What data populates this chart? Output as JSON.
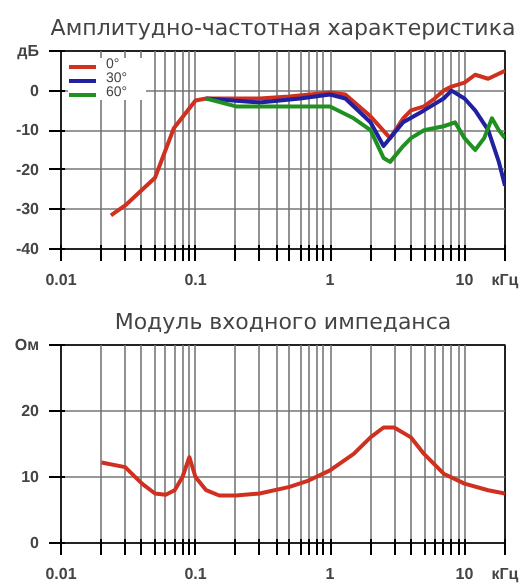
{
  "chart_data": [
    {
      "type": "line",
      "title": "Амплитудно-частотная характеристика",
      "log": "x",
      "grid": true,
      "legend": "top left",
      "xlim": [
        0.01,
        20
      ],
      "ylim": [
        -40,
        10
      ],
      "xticks": [
        0.01,
        {
          "value": 0.02,
          "label": null
        },
        {
          "value": 0.03,
          "label": null
        },
        {
          "value": 0.04,
          "label": null
        },
        {
          "value": 0.05,
          "label": null
        },
        {
          "value": 0.06,
          "label": null
        },
        {
          "value": 0.07,
          "label": null
        },
        {
          "value": 0.08,
          "label": null
        },
        {
          "value": 0.09,
          "label": null
        },
        0.1,
        {
          "value": 0.2,
          "label": null
        },
        {
          "value": 0.3,
          "label": null
        },
        {
          "value": 0.4,
          "label": null
        },
        {
          "value": 0.5,
          "label": null
        },
        {
          "value": 0.6,
          "label": null
        },
        {
          "value": 0.7,
          "label": null
        },
        {
          "value": 0.8,
          "label": null
        },
        {
          "value": 0.9,
          "label": null
        },
        1,
        {
          "value": 2,
          "label": null
        },
        {
          "value": 3,
          "label": null
        },
        {
          "value": 4,
          "label": null
        },
        {
          "value": 5,
          "label": null
        },
        {
          "value": 6,
          "label": null
        },
        {
          "value": 7,
          "label": null
        },
        {
          "value": 8,
          "label": null
        },
        {
          "value": 9,
          "label": null
        },
        10,
        {
          "value": 20,
          "label": "кГц"
        }
      ],
      "yticks": [
        -40,
        -30,
        -20,
        -10,
        0,
        {
          "value": 10,
          "label": "дБ"
        }
      ],
      "series": [
        {
          "name": "0°",
          "color": "#d03020",
          "x": [
            0.0235,
            0.03,
            0.05,
            0.069,
            0.1,
            0.12,
            0.3,
            0.5,
            1,
            1.3,
            2,
            2.8,
            3.5,
            4,
            5,
            6,
            7,
            8,
            10,
            12,
            15,
            20
          ],
          "values": [
            -31.5,
            -29,
            -22,
            -9.5,
            -2.5,
            -2,
            -2,
            -1.5,
            -0.5,
            -1,
            -6.5,
            -12,
            -7,
            -5,
            -4,
            -2,
            0,
            1,
            2,
            4,
            3,
            5
          ]
        },
        {
          "name": "30°",
          "color": "#2020a0",
          "x": [
            0.12,
            0.3,
            0.6,
            1,
            1.3,
            2,
            2.5,
            3.5,
            5,
            7,
            8,
            10,
            12,
            15,
            18,
            20
          ],
          "values": [
            -2,
            -3,
            -2,
            -1,
            -2,
            -8,
            -14,
            -8,
            -5,
            -2,
            0,
            -2,
            -5,
            -10,
            -18,
            -24
          ]
        },
        {
          "name": "60°",
          "color": "#209020",
          "x": [
            0.12,
            0.2,
            0.5,
            1,
            1.5,
            2,
            2.5,
            2.8,
            3.5,
            4,
            5,
            7,
            8.5,
            10,
            12,
            14,
            16,
            18,
            20
          ],
          "values": [
            -2,
            -4,
            -4,
            -4,
            -7,
            -10,
            -17,
            -18,
            -14,
            -12,
            -10,
            -9,
            -8,
            -12,
            -15,
            -12,
            -7,
            -10,
            -12
          ]
        }
      ]
    },
    {
      "type": "line",
      "title": "Модуль входного импеданса",
      "log": "x",
      "grid": true,
      "xlim": [
        0.01,
        20
      ],
      "ylim": [
        0,
        30
      ],
      "xticks": [
        0.01,
        {
          "value": 0.02,
          "label": null
        },
        {
          "value": 0.03,
          "label": null
        },
        {
          "value": 0.04,
          "label": null
        },
        {
          "value": 0.05,
          "label": null
        },
        {
          "value": 0.06,
          "label": null
        },
        {
          "value": 0.07,
          "label": null
        },
        {
          "value": 0.08,
          "label": null
        },
        {
          "value": 0.09,
          "label": null
        },
        0.1,
        {
          "value": 0.2,
          "label": null
        },
        {
          "value": 0.3,
          "label": null
        },
        {
          "value": 0.4,
          "label": null
        },
        {
          "value": 0.5,
          "label": null
        },
        {
          "value": 0.6,
          "label": null
        },
        {
          "value": 0.7,
          "label": null
        },
        {
          "value": 0.8,
          "label": null
        },
        {
          "value": 0.9,
          "label": null
        },
        1,
        {
          "value": 2,
          "label": null
        },
        {
          "value": 3,
          "label": null
        },
        {
          "value": 4,
          "label": null
        },
        {
          "value": 5,
          "label": null
        },
        {
          "value": 6,
          "label": null
        },
        {
          "value": 7,
          "label": null
        },
        {
          "value": 8,
          "label": null
        },
        {
          "value": 9,
          "label": null
        },
        10,
        {
          "value": 20,
          "label": "кГц"
        }
      ],
      "yticks": [
        0,
        10,
        20,
        {
          "value": 30,
          "label": "Ом"
        }
      ],
      "series": [
        {
          "color": "#d03020",
          "x": [
            0.02,
            0.03,
            0.04,
            0.05,
            0.06,
            0.07,
            0.08,
            0.09,
            0.1,
            0.12,
            0.15,
            0.2,
            0.3,
            0.5,
            0.7,
            1,
            1.5,
            2,
            2.5,
            3,
            4,
            5,
            7,
            10,
            15,
            20
          ],
          "values": [
            12.2,
            11.5,
            9,
            7.5,
            7.3,
            8,
            10,
            13,
            10,
            8,
            7.2,
            7.2,
            7.5,
            8.5,
            9.5,
            11,
            13.5,
            16,
            17.5,
            17.5,
            16,
            13.5,
            10.5,
            9,
            8,
            7.5
          ]
        }
      ]
    }
  ]
}
